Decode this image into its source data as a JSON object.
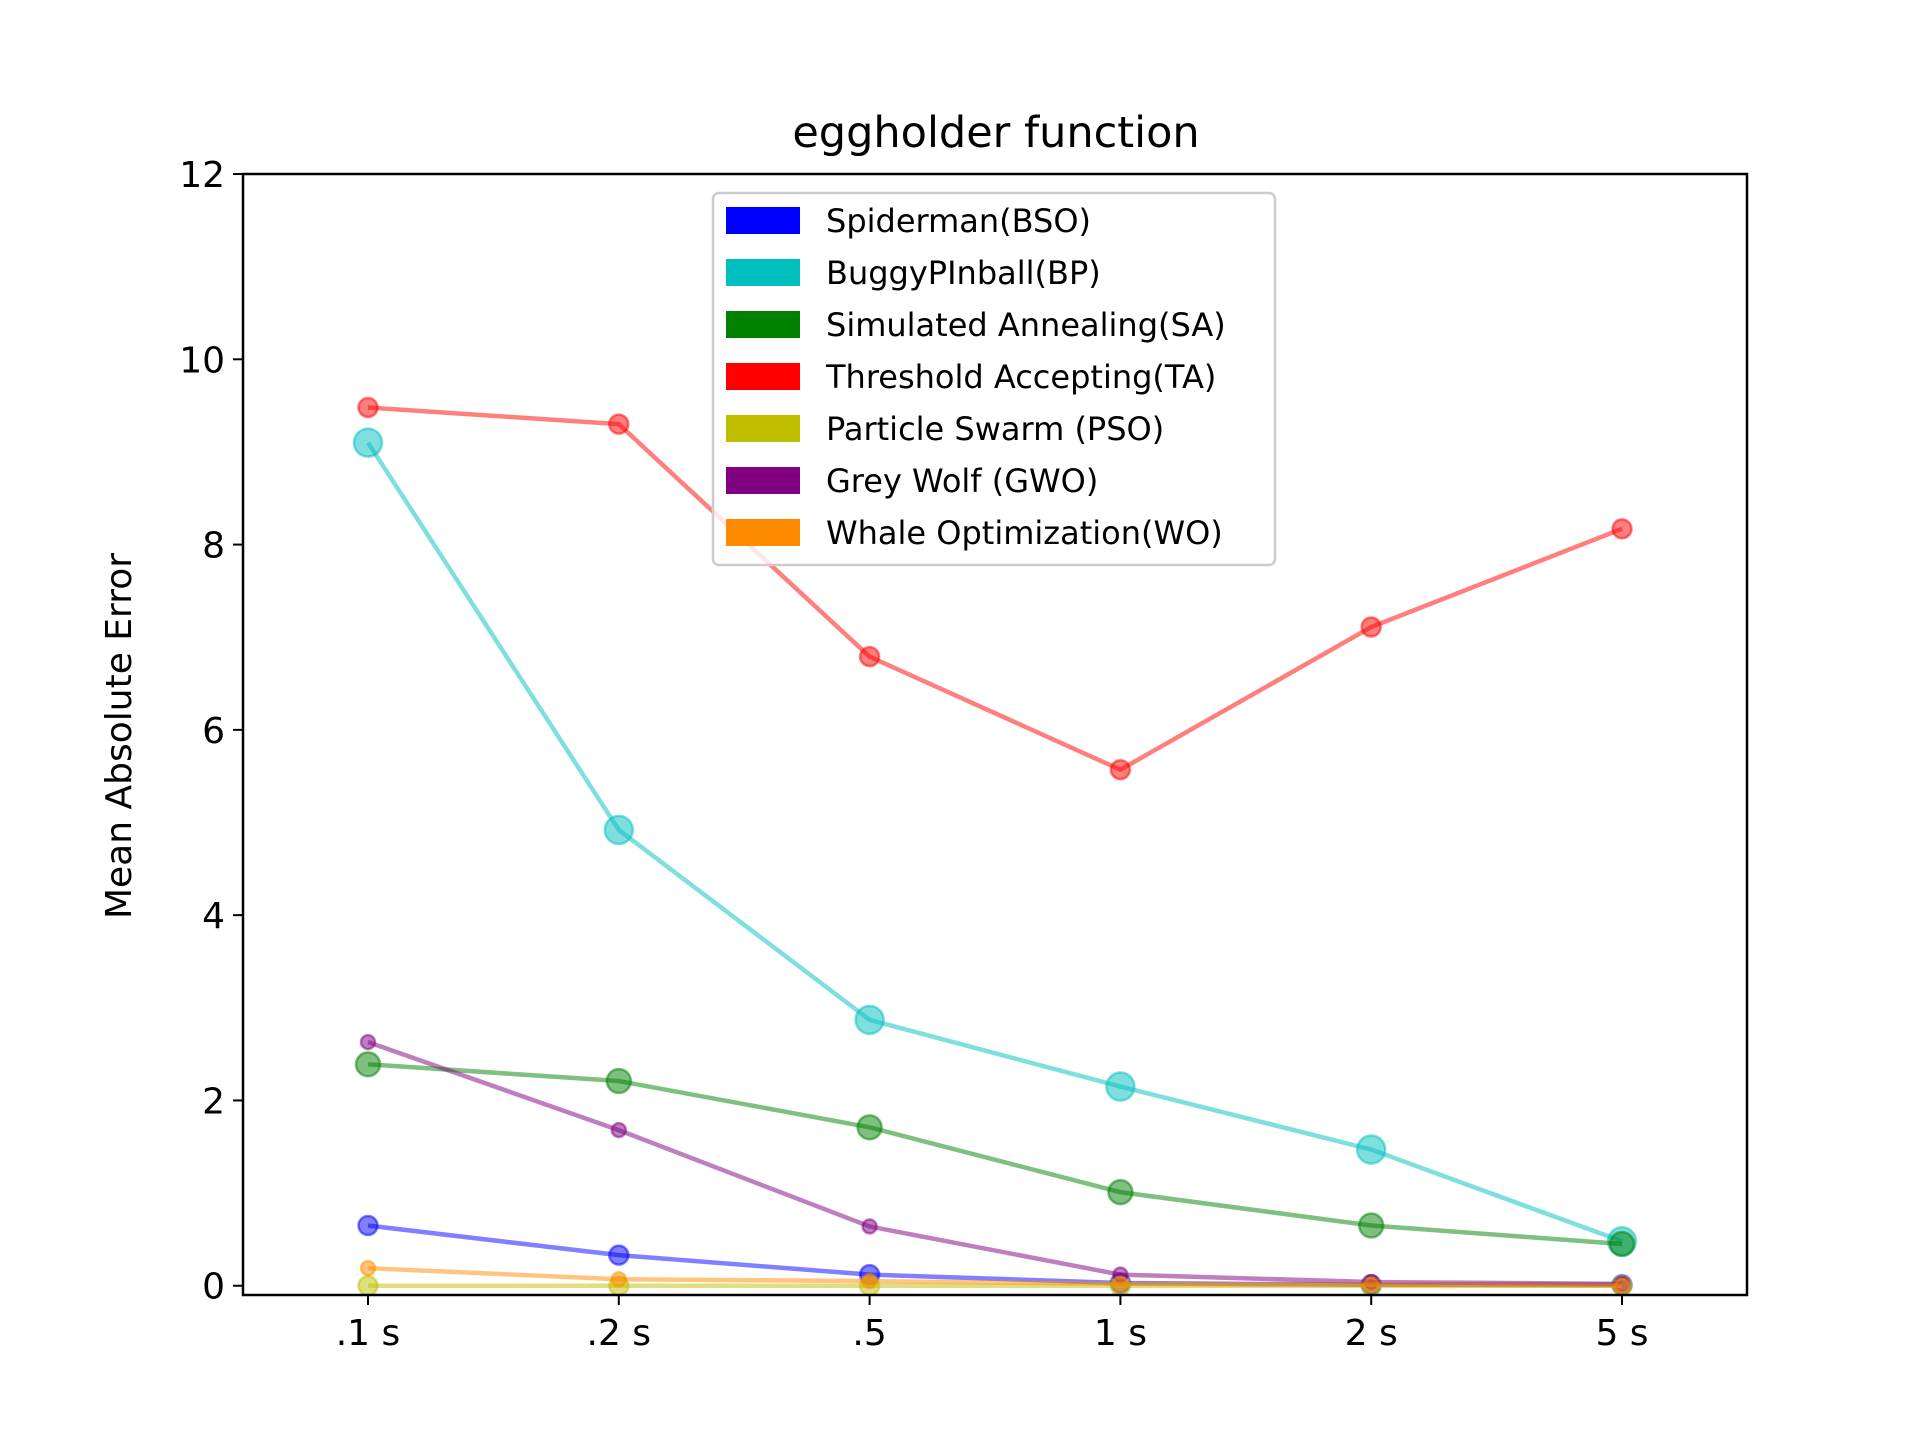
{
  "chart_data": {
    "type": "line",
    "title": "eggholder function",
    "xlabel": "",
    "ylabel": "Mean Absolute Error",
    "categories": [
      ".1 s",
      ".2 s",
      ".5",
      "1 s",
      "2 s",
      "5 s"
    ],
    "yticks": [
      0,
      2,
      4,
      6,
      8,
      10,
      12
    ],
    "ylim": [
      -0.1,
      12
    ],
    "grid": false,
    "legend_position": "top-center",
    "series": [
      {
        "name": "Spiderman(BSO)",
        "color": "#0000ff",
        "marker": "medium",
        "values": [
          0.65,
          0.33,
          0.12,
          0.03,
          0.01,
          0.01
        ]
      },
      {
        "name": "BuggyPInball(BP)",
        "color": "#00bfbf",
        "marker": "large",
        "values": [
          9.1,
          4.92,
          2.87,
          2.15,
          1.47,
          0.48
        ]
      },
      {
        "name": "Simulated Annealing(SA)",
        "color": "#008000",
        "marker": "medium-large",
        "values": [
          2.39,
          2.21,
          1.71,
          1.01,
          0.65,
          0.45
        ]
      },
      {
        "name": "Threshold Accepting(TA)",
        "color": "#ff0000",
        "marker": "medium",
        "values": [
          9.48,
          9.3,
          6.79,
          5.57,
          7.11,
          8.17
        ]
      },
      {
        "name": "Particle Swarm (PSO)",
        "color": "#bfbf00",
        "marker": "medium",
        "values": [
          0.0,
          0.0,
          0.0,
          0.0,
          0.0,
          0.0
        ]
      },
      {
        "name": "Grey Wolf (GWO)",
        "color": "#800080",
        "marker": "small",
        "values": [
          2.63,
          1.68,
          0.64,
          0.12,
          0.04,
          0.02
        ]
      },
      {
        "name": "Whale Optimization(WO)",
        "color": "#ff8c00",
        "marker": "small",
        "values": [
          0.19,
          0.07,
          0.05,
          0.02,
          0.01,
          0.0
        ]
      }
    ]
  }
}
